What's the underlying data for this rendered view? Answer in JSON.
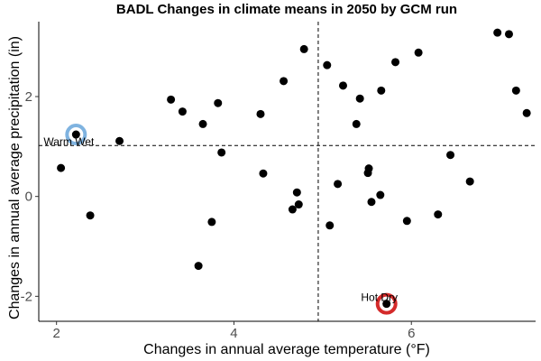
{
  "chart_data": {
    "type": "scatter",
    "title": "BADL Changes in climate means in 2050 by GCM run",
    "xlabel": "Changes in annual average temperature (°F)",
    "ylabel": "Changes in annual average precipitation (in)",
    "xlim": [
      1.8,
      7.4
    ],
    "ylim": [
      -2.5,
      3.5
    ],
    "x_ticks": [
      2,
      4,
      6
    ],
    "y_ticks": [
      -2,
      0,
      2
    ],
    "x_tick_labels": [
      "2",
      "4",
      "6"
    ],
    "y_tick_labels": [
      "-2",
      "0",
      "2"
    ],
    "grid": false,
    "legend": "none",
    "reference_lines": {
      "x": 4.95,
      "y": 1.02
    },
    "point_color": "#000000",
    "points": [
      {
        "x": 2.05,
        "y": 0.57
      },
      {
        "x": 2.22,
        "y": 1.24
      },
      {
        "x": 2.38,
        "y": -0.38
      },
      {
        "x": 2.71,
        "y": 1.11
      },
      {
        "x": 3.29,
        "y": 1.94
      },
      {
        "x": 3.42,
        "y": 1.7
      },
      {
        "x": 3.6,
        "y": -1.39
      },
      {
        "x": 3.65,
        "y": 1.45
      },
      {
        "x": 3.75,
        "y": -0.51
      },
      {
        "x": 3.82,
        "y": 1.87
      },
      {
        "x": 3.86,
        "y": 0.88
      },
      {
        "x": 4.3,
        "y": 1.65
      },
      {
        "x": 4.33,
        "y": 0.46
      },
      {
        "x": 4.56,
        "y": 2.31
      },
      {
        "x": 4.66,
        "y": -0.26
      },
      {
        "x": 4.71,
        "y": 0.08
      },
      {
        "x": 4.73,
        "y": -0.16
      },
      {
        "x": 4.79,
        "y": 2.95
      },
      {
        "x": 5.05,
        "y": 2.63
      },
      {
        "x": 5.08,
        "y": -0.58
      },
      {
        "x": 5.17,
        "y": 0.25
      },
      {
        "x": 5.23,
        "y": 2.22
      },
      {
        "x": 5.38,
        "y": 1.45
      },
      {
        "x": 5.42,
        "y": 1.96
      },
      {
        "x": 5.51,
        "y": 0.47
      },
      {
        "x": 5.52,
        "y": 0.56
      },
      {
        "x": 5.55,
        "y": -0.11
      },
      {
        "x": 5.65,
        "y": 0.03
      },
      {
        "x": 5.66,
        "y": 2.12
      },
      {
        "x": 5.72,
        "y": -2.15
      },
      {
        "x": 5.82,
        "y": 2.69
      },
      {
        "x": 5.95,
        "y": -0.49
      },
      {
        "x": 6.08,
        "y": 2.88
      },
      {
        "x": 6.3,
        "y": -0.36
      },
      {
        "x": 6.44,
        "y": 0.83
      },
      {
        "x": 6.66,
        "y": 0.3
      },
      {
        "x": 6.97,
        "y": 3.28
      },
      {
        "x": 7.1,
        "y": 3.25
      },
      {
        "x": 7.18,
        "y": 2.12
      },
      {
        "x": 7.3,
        "y": 1.67
      }
    ],
    "annotations": [
      {
        "label": "Warm Wet",
        "x": 2.22,
        "y": 1.24,
        "ring_color": "#7fb3e0"
      },
      {
        "label": "Hot Dry",
        "x": 5.72,
        "y": -2.15,
        "ring_color": "#d42a2a"
      }
    ]
  }
}
